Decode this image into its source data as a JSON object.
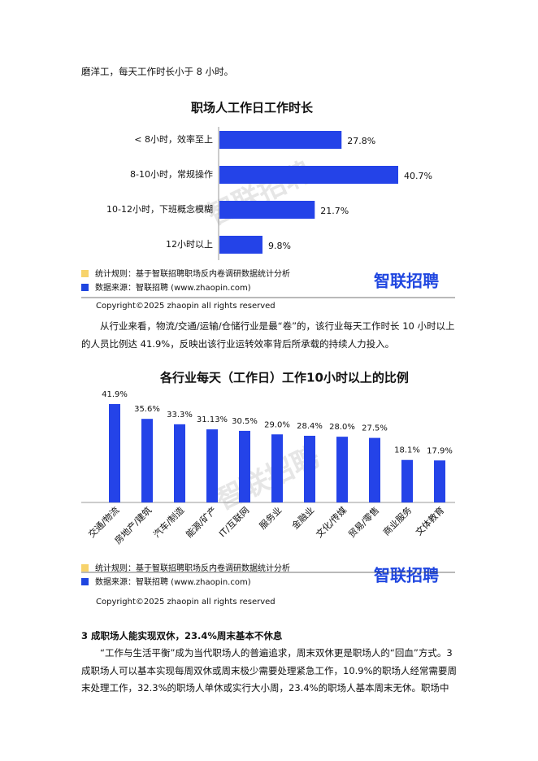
{
  "paragraphs": [
    "磨洋工，每天工作时长小于 8 小时。",
    "从行业来看，物流/交通/运输/仓储行业是最“卷”的，该行业每天工作时长 10 小时以上的人员比例达 41.9%，反映出该行业运转效率背后所承载的持续人力投入。"
  ],
  "heading": "3 成职场人能实现双休，23.4%周末基本不休息",
  "closing_paragraph": "“工作与生活平衡”成为当代职场人的普遍追求，周末双休更是职场人的“回血”方式。3 成职场人可以基本实现每周双休或周末极少需要处理紧急工作，10.9%的职场人经常需要周末处理工作，32.3%的职场人单休或实行大小周，23.4%的职场人基本周末无休。职场中",
  "chart_notes": [
    {
      "rule": "统计规则：基于智联招聘职场反内卷调研数据统计分析",
      "source": "数据来源：智联招聘 (www.zhaopin.com)",
      "logo": "智联招聘",
      "copyright": "Copyright©2025 zhaopin all rights reserved",
      "watermark": "智联招聘"
    },
    {
      "rule": "统计规则：基于智联招聘职场反内卷调研数据统计分析",
      "source": "数据来源：智联招聘 (www.zhaopin.com)",
      "logo": "智联招聘",
      "copyright": "Copyright©2025 zhaopin all rights reserved",
      "watermark": "智联招聘"
    }
  ],
  "chart_data": [
    {
      "type": "bar",
      "orientation": "horizontal",
      "title": "职场人工作日工作时长",
      "color": "#2443e8",
      "categories": [
        "< 8小时，效率至上",
        "8-10小时，常规操作",
        "10-12小时，下班概念模糊",
        "12小时以上"
      ],
      "values": [
        27.8,
        40.7,
        21.7,
        9.8
      ],
      "value_labels": [
        "27.8%",
        "40.7%",
        "21.7%",
        "9.8%"
      ]
    },
    {
      "type": "bar",
      "orientation": "vertical",
      "title": "各行业每天（工作日）工作10小时以上的比例",
      "color": "#2443e8",
      "categories": [
        "交通/物流",
        "房地产/建筑",
        "汽车/制造",
        "能源/矿产",
        "IT/互联网",
        "服务业",
        "金融业",
        "文化/传媒",
        "贸易/零售",
        "商业服务",
        "文体教育"
      ],
      "values": [
        41.9,
        35.6,
        33.3,
        31.13,
        30.5,
        29.0,
        28.4,
        28.0,
        27.5,
        18.1,
        17.9
      ],
      "value_labels": [
        "41.9%",
        "35.6%",
        "33.3%",
        "31.13%",
        "30.5%",
        "29.0%",
        "28.4%",
        "28.0%",
        "27.5%",
        "18.1%",
        "17.9%"
      ]
    }
  ]
}
